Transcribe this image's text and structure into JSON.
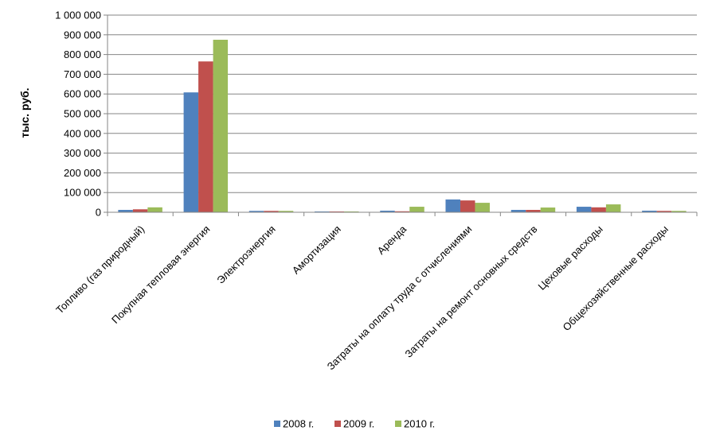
{
  "chart_data": {
    "type": "bar",
    "title": "",
    "xlabel": "",
    "ylabel": "тыс. руб.",
    "ylim": [
      0,
      1000000
    ],
    "y_ticks": [
      0,
      100000,
      200000,
      300000,
      400000,
      500000,
      600000,
      700000,
      800000,
      900000,
      1000000
    ],
    "y_tick_labels": [
      "0",
      "100 000",
      "200 000",
      "300 000",
      "400 000",
      "500 000",
      "600 000",
      "700 000",
      "800 000",
      "900 000",
      "1 000 000"
    ],
    "grid": true,
    "legend_position": "bottom",
    "categories": [
      "Топливо (газ природный)",
      "Покупная тепловая энергия",
      "Электроэнергия",
      "Амортизация",
      "Аренда",
      "Затраты на оплату труда с отчислениями",
      "Затраты на ремонт основных средств",
      "Цеховые расходы",
      "Общехозяйственные расходы"
    ],
    "series": [
      {
        "name": "2008 г.",
        "color": "#4F81BD",
        "values": [
          12000,
          608000,
          7000,
          3000,
          8000,
          65000,
          12000,
          28000,
          8000
        ]
      },
      {
        "name": "2009 г.",
        "color": "#C0504D",
        "values": [
          15000,
          765000,
          7000,
          3000,
          5000,
          60000,
          12000,
          25000,
          7000
        ]
      },
      {
        "name": "2010 г.",
        "color": "#9BBB59",
        "values": [
          25000,
          875000,
          7000,
          3000,
          28000,
          48000,
          24000,
          40000,
          7000
        ]
      }
    ]
  }
}
